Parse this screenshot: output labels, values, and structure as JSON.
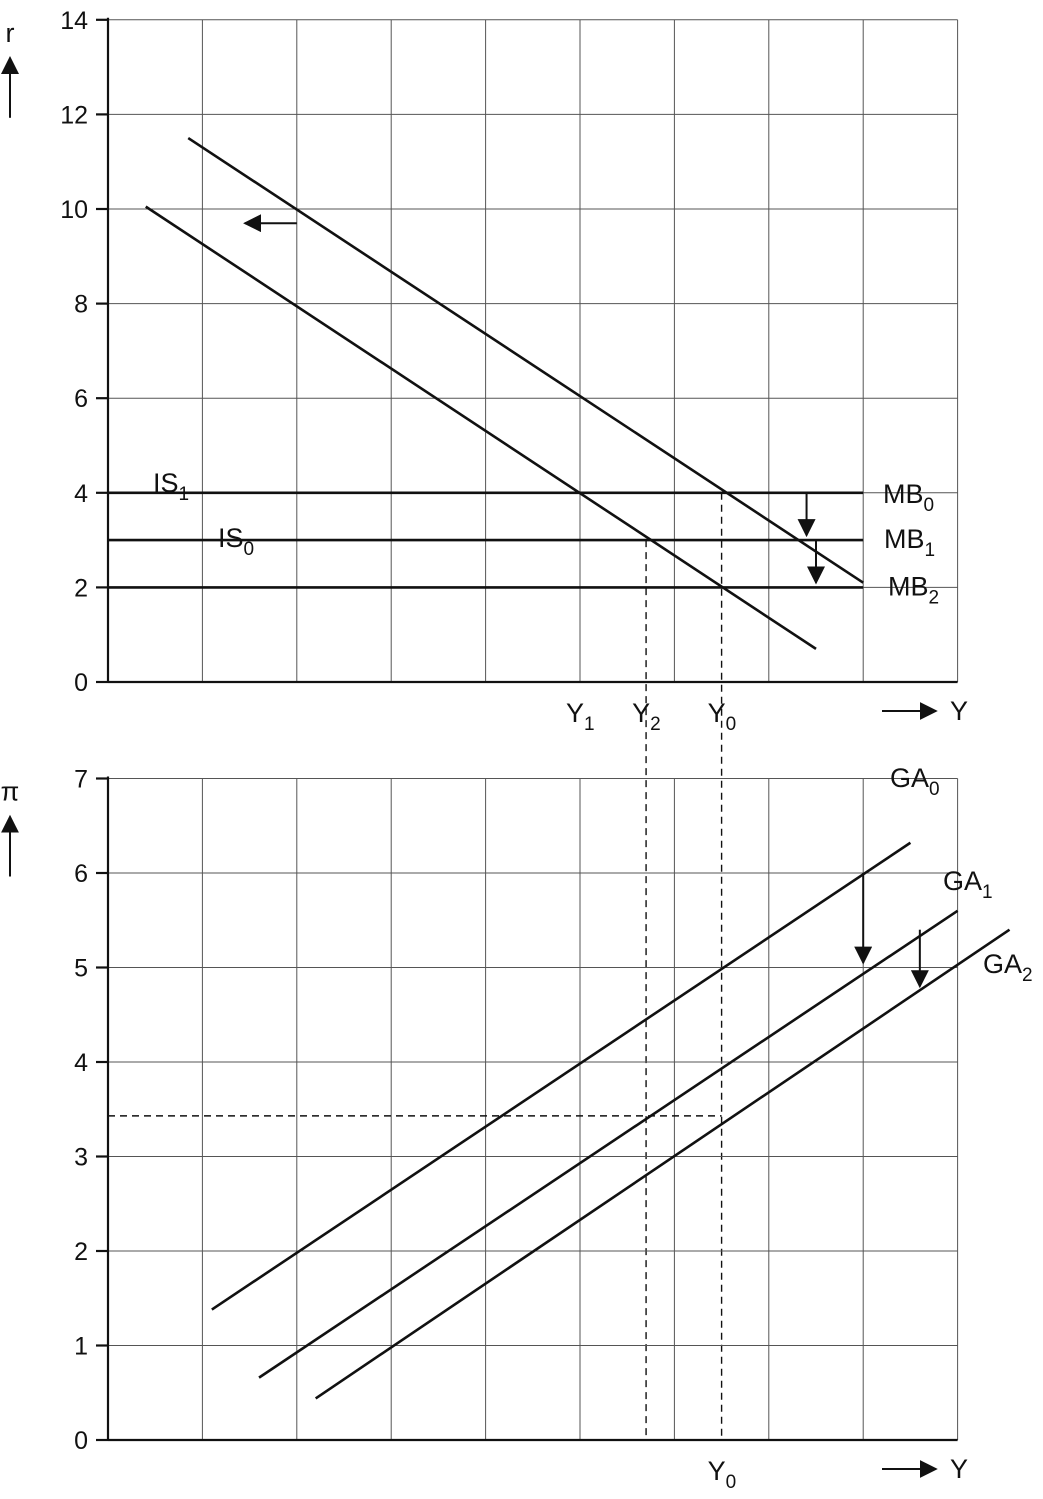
{
  "chart_data": [
    {
      "id": "top",
      "type": "line",
      "title": "",
      "ylabel": "r",
      "xlabel": "Y",
      "ylim": [
        0,
        14
      ],
      "yticks": [
        0,
        2,
        4,
        6,
        8,
        10,
        12,
        14
      ],
      "grid": true,
      "series": [
        {
          "label": "IS",
          "sub": "0",
          "kind": "line",
          "points": [
            [
              0.85,
              11.5
            ],
            [
              8,
              2.1
            ]
          ]
        },
        {
          "label": "IS",
          "sub": "1",
          "kind": "line",
          "points": [
            [
              0.4,
              10.05
            ],
            [
              7.5,
              0.7
            ]
          ]
        },
        {
          "label": "MB",
          "sub": "0",
          "kind": "hline",
          "y": 4,
          "x": [
            0,
            8
          ]
        },
        {
          "label": "MB",
          "sub": "1",
          "kind": "hline",
          "y": 3,
          "x": [
            0,
            8
          ]
        },
        {
          "label": "MB",
          "sub": "2",
          "kind": "hline",
          "y": 2,
          "x": [
            0,
            8
          ]
        }
      ],
      "markers": [
        {
          "label": "Y",
          "sub": "1",
          "x": 5
        },
        {
          "label": "Y",
          "sub": "2",
          "x": 5.7
        },
        {
          "label": "Y",
          "sub": "0",
          "x": 6.5
        }
      ],
      "arrows": [
        {
          "from": [
            2,
            9.7
          ],
          "to": [
            1.45,
            9.7
          ]
        },
        {
          "from": [
            7.4,
            4
          ],
          "to": [
            7.4,
            3.1
          ]
        },
        {
          "from": [
            7.5,
            3
          ],
          "to": [
            7.5,
            2.1
          ]
        }
      ]
    },
    {
      "id": "bottom",
      "type": "line",
      "title": "",
      "ylabel": "π",
      "xlabel": "Y",
      "ylim": [
        0,
        7
      ],
      "yticks": [
        0,
        1,
        2,
        3,
        4,
        5,
        6,
        7
      ],
      "grid": true,
      "series": [
        {
          "label": "GA",
          "sub": "0",
          "kind": "line",
          "points": [
            [
              1.1,
              1.38
            ],
            [
              8.5,
              6.32
            ]
          ]
        },
        {
          "label": "GA",
          "sub": "1",
          "kind": "line",
          "points": [
            [
              1.6,
              0.66
            ],
            [
              9,
              5.6
            ]
          ]
        },
        {
          "label": "GA",
          "sub": "2",
          "kind": "line",
          "points": [
            [
              2.2,
              0.44
            ],
            [
              9.55,
              5.4
            ]
          ]
        }
      ],
      "markers": [
        {
          "label": "Y",
          "sub": "0",
          "x": 6.5
        }
      ],
      "dashed_y": 3.43,
      "arrows": [
        {
          "from": [
            8,
            6
          ],
          "to": [
            8,
            5.05
          ]
        },
        {
          "from": [
            8.6,
            5.4
          ],
          "to": [
            8.6,
            4.8
          ]
        }
      ]
    }
  ]
}
